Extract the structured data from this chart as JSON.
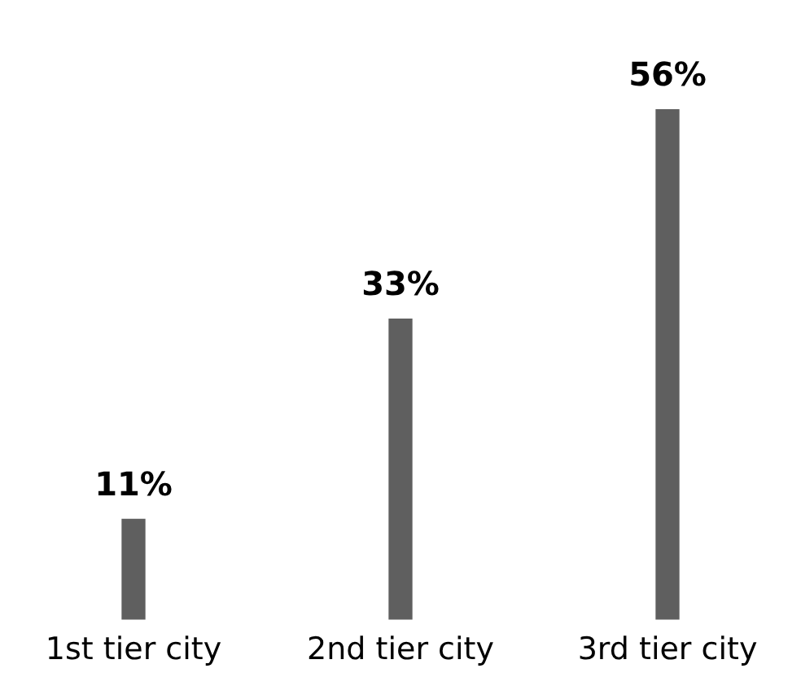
{
  "chart_data": {
    "type": "bar",
    "categories": [
      "1st tier city",
      "2nd tier city",
      "3rd tier city"
    ],
    "values": [
      11,
      33,
      56
    ],
    "color": "#5f5f5f",
    "value_labels": [
      "11%",
      "33%",
      "56%"
    ],
    "grid": false,
    "legend": false
  }
}
